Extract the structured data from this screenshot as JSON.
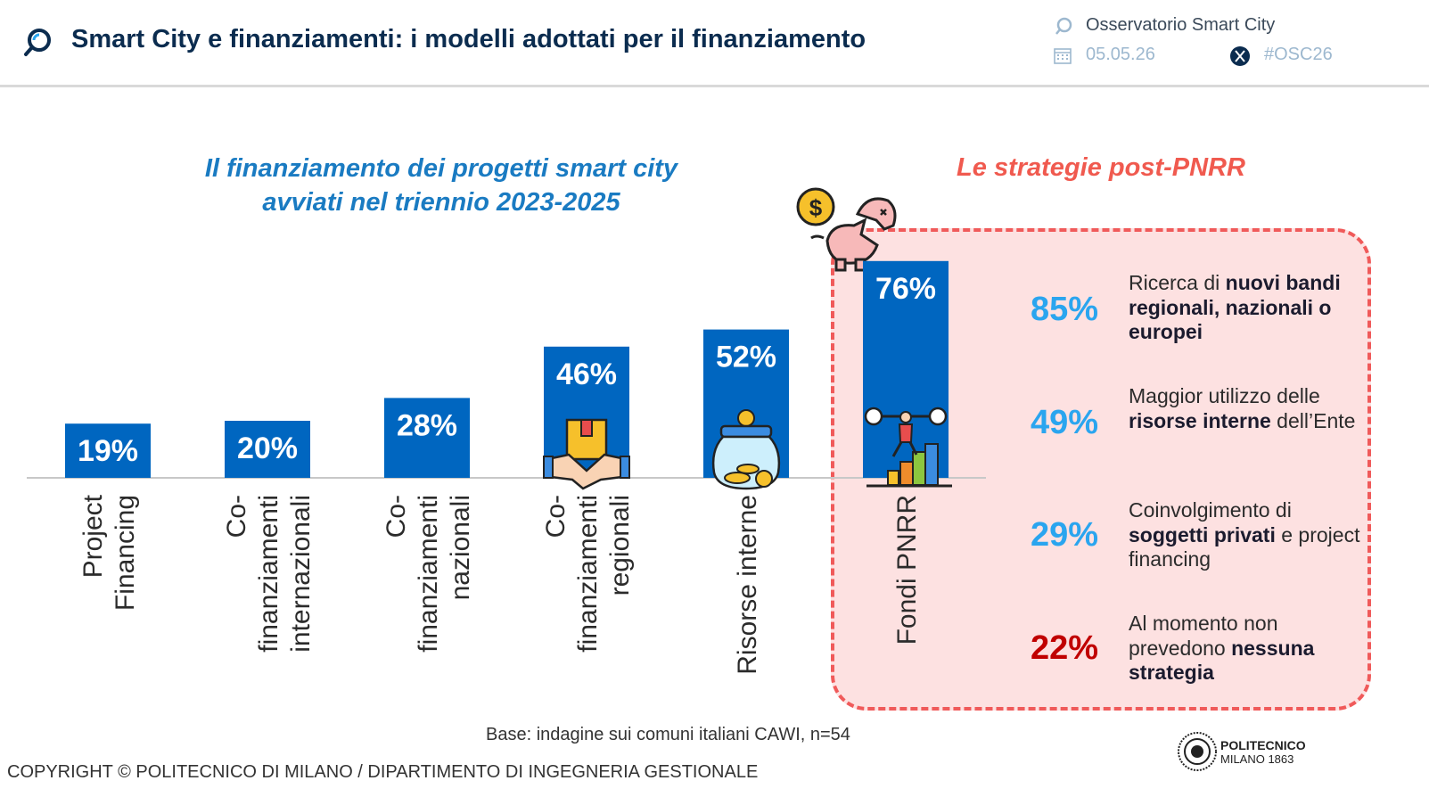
{
  "header": {
    "title": "Smart City e finanziamenti: i modelli adottati per il finanziamento",
    "observatory": "Osservatorio Smart City",
    "date": "05.05.26",
    "hashtag": "#OSC26"
  },
  "left_title_line1": "Il finanziamento dei progetti smart city",
  "left_title_line2": "avviati nel triennio 2023-2025",
  "right_title": "Le strategie post-PNRR",
  "colors": {
    "bar": "#0066c0",
    "accent_blue": "#2aa5ef",
    "accent_red": "#c00000",
    "panel_border": "#f05a5a",
    "panel_fill": "#fde1e1"
  },
  "chart_data": {
    "type": "bar",
    "categories": [
      [
        "Project",
        "Financing"
      ],
      [
        "Co-",
        "finanziamenti",
        "internazionali"
      ],
      [
        "Co-",
        "finanziamenti",
        "nazionali"
      ],
      [
        "Co-",
        "finanziamenti",
        "regionali"
      ],
      [
        "Risorse interne"
      ],
      [
        "Fondi PNRR"
      ]
    ],
    "values": [
      19,
      20,
      28,
      46,
      52,
      76
    ],
    "value_labels": [
      "19%",
      "20%",
      "28%",
      "46%",
      "52%",
      "76%"
    ],
    "icons": [
      "",
      "",
      "",
      "handshake-box-icon",
      "coin-jar-icon",
      "weightlifter-growth-icon"
    ],
    "unit": "%"
  },
  "strategies": [
    {
      "value": "85%",
      "color": "#2aa5ef",
      "parts": [
        [
          "Ricerca di ",
          false
        ],
        [
          "nuovi bandi regionali, nazionali o europei",
          true
        ]
      ]
    },
    {
      "value": "49%",
      "color": "#2aa5ef",
      "parts": [
        [
          "Maggior utilizzo delle ",
          false
        ],
        [
          "risorse interne",
          true
        ],
        [
          " dell’Ente",
          false
        ]
      ]
    },
    {
      "value": "29%",
      "color": "#2aa5ef",
      "parts": [
        [
          "Coinvolgimento di ",
          false
        ],
        [
          "soggetti privati",
          true
        ],
        [
          " e project financing",
          false
        ]
      ]
    },
    {
      "value": "22%",
      "color": "#c00000",
      "parts": [
        [
          "Al momento non prevedono ",
          false
        ],
        [
          "nessuna strategia",
          true
        ]
      ]
    }
  ],
  "footer": {
    "base_note": "Base: indagine sui comuni italiani CAWI, n=54",
    "copyright": "COPYRIGHT © POLITECNICO DI MILANO / DIPARTIMENTO DI INGEGNERIA GESTIONALE",
    "logo_name": "POLITECNICO",
    "logo_sub": "MILANO 1863"
  }
}
